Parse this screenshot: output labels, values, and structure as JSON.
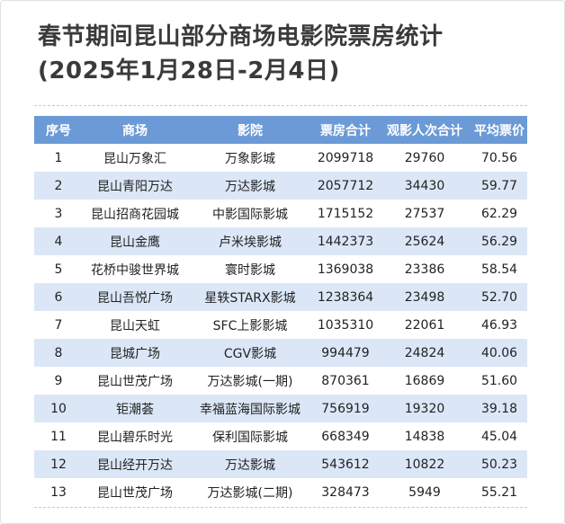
{
  "title": {
    "line1": "春节期间昆山部分商场电影院票房统计",
    "line2": "(2025年1月28日-2月4日)"
  },
  "colors": {
    "header_bg": "#6b9ad6",
    "stripe_bg": "#dbe7f7"
  },
  "table": {
    "headers": [
      "序号",
      "商场",
      "影院",
      "票房合计",
      "观影人次合计",
      "平均票价"
    ],
    "rows": [
      [
        "1",
        "昆山万象汇",
        "万象影城",
        "2099718",
        "29760",
        "70.56"
      ],
      [
        "2",
        "昆山青阳万达",
        "万达影城",
        "2057712",
        "34430",
        "59.77"
      ],
      [
        "3",
        "昆山招商花园城",
        "中影国际影城",
        "1715152",
        "27537",
        "62.29"
      ],
      [
        "4",
        "昆山金鹰",
        "卢米埃影城",
        "1442373",
        "25624",
        "56.29"
      ],
      [
        "5",
        "花桥中骏世界城",
        "寰时影城",
        "1369038",
        "23386",
        "58.54"
      ],
      [
        "6",
        "昆山吾悦广场",
        "星轶STARX影城",
        "1238364",
        "23498",
        "52.70"
      ],
      [
        "7",
        "昆山天虹",
        "SFC上影影城",
        "1035310",
        "22061",
        "46.93"
      ],
      [
        "8",
        "昆城广场",
        "CGV影城",
        "994479",
        "24824",
        "40.06"
      ],
      [
        "9",
        "昆山世茂广场",
        "万达影城(一期)",
        "870361",
        "16869",
        "51.60"
      ],
      [
        "10",
        "钜潮荟",
        "幸福蓝海国际影城",
        "756919",
        "19320",
        "39.18"
      ],
      [
        "11",
        "昆山碧乐时光",
        "保利国际影城",
        "668349",
        "14838",
        "45.04"
      ],
      [
        "12",
        "昆山经开万达",
        "万达影城",
        "543612",
        "10822",
        "50.23"
      ],
      [
        "13",
        "昆山世茂广场",
        "万达影城(二期)",
        "328473",
        "5949",
        "55.21"
      ]
    ]
  }
}
